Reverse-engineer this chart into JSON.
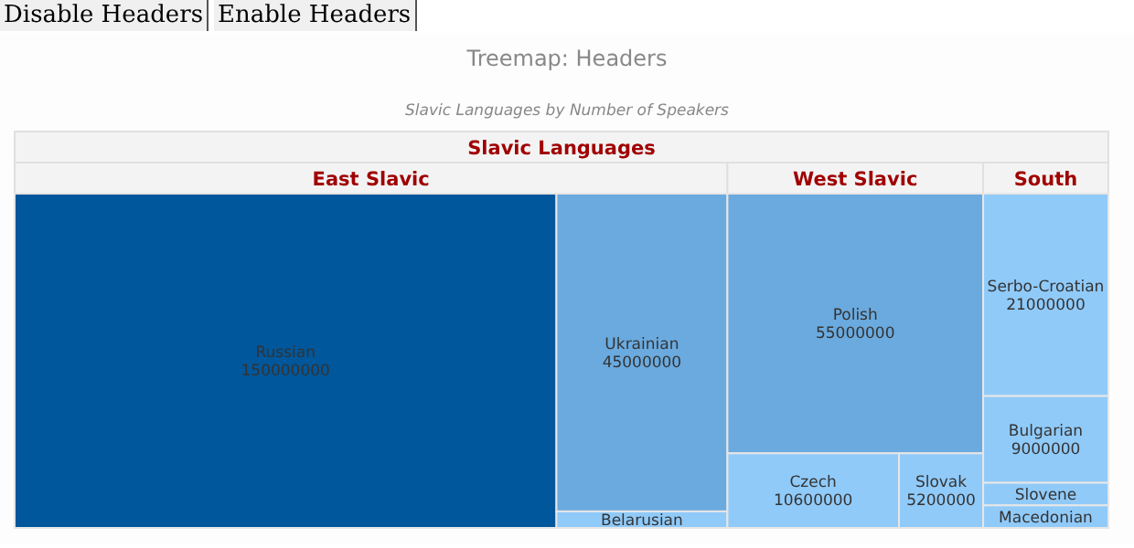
{
  "chart_data": {
    "type": "other",
    "title": "Treemap: Headers",
    "subtitle": "Slavic Languages by Number of Speakers",
    "annotations": [
      "Disable Headers",
      "Enable Headers",
      "Slavic Languages"
    ],
    "data_labels": true,
    "categories": [
      "Russian",
      "Ukrainian",
      "Belarusian",
      "Polish",
      "Czech",
      "Slovak",
      "Serbo-Croatian",
      "Bulgarian",
      "Slovene",
      "Macedonian"
    ],
    "series": [
      {
        "name": "East Slavic",
        "values": [
          150000000,
          45000000,
          null,
          null,
          null,
          null,
          null,
          null,
          null,
          null
        ],
        "colors": [
          "#01579b",
          "#6aaadf",
          "#90caf9",
          null,
          null,
          null,
          null,
          null,
          null,
          null
        ]
      },
      {
        "name": "West Slavic",
        "values": [
          null,
          null,
          null,
          55000000,
          10600000,
          5200000,
          null,
          null,
          null,
          null
        ],
        "colors": [
          null,
          null,
          null,
          "#6aaadf",
          "#90caf9",
          "#90caf9",
          null,
          null,
          null,
          null
        ]
      },
      {
        "name": "South",
        "values": [
          null,
          null,
          null,
          null,
          null,
          null,
          21000000,
          9000000,
          null,
          null
        ],
        "colors": [
          null,
          null,
          null,
          null,
          null,
          null,
          "#90caf9",
          "#90caf9",
          "#90caf9",
          "#90caf9"
        ]
      }
    ]
  }
}
